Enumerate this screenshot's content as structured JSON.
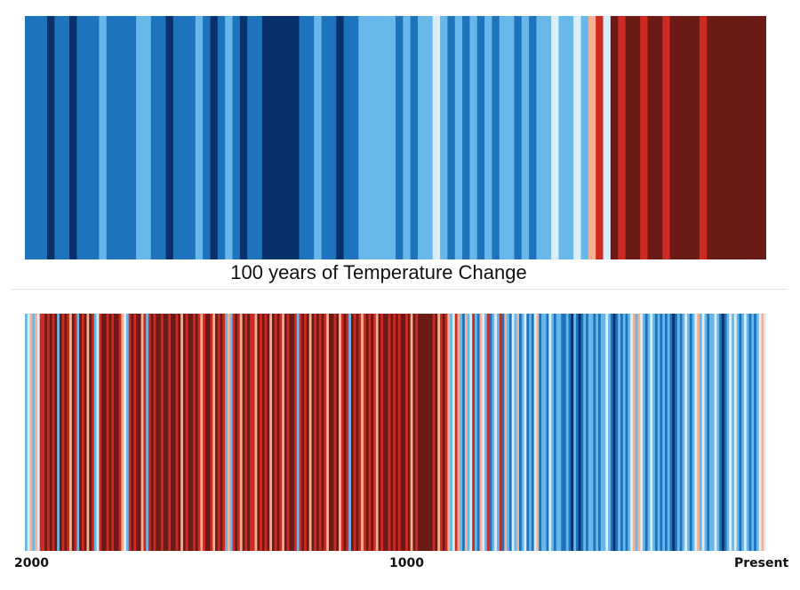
{
  "palette": [
    "#08306b",
    "#0b4f9c",
    "#1e73bd",
    "#3a95d8",
    "#68b7eb",
    "#a9d8f5",
    "#d9eef9",
    "#fbe9d8",
    "#f6b092",
    "#ea6b4b",
    "#cf2a22",
    "#a0151a",
    "#6b1a16"
  ],
  "chart_data": [
    {
      "type": "heatmap",
      "variant": "warming-stripes",
      "title": "100 years of Temperature Change",
      "xlabel": "",
      "ylabel": "",
      "legend": "none",
      "grid": false,
      "scale": {
        "min": -3,
        "max": 3,
        "colors": [
          "#08306b",
          "#0b4f9c",
          "#1e73bd",
          "#3a95d8",
          "#68b7eb",
          "#a9d8f5",
          "#d9eef9",
          "#fbe9d8",
          "#f6b092",
          "#ea6b4b",
          "#cf2a22",
          "#a0151a",
          "#6b1a16"
        ]
      },
      "values": [
        -2,
        -2,
        -2,
        -3,
        -2,
        -2,
        -3,
        -2,
        -2,
        -2,
        -1,
        -2,
        -2,
        -2,
        -2,
        -1,
        -1,
        -2,
        -2,
        -3,
        -2,
        -2,
        -2,
        -1,
        -2,
        -3,
        -2,
        -1,
        -2,
        -3,
        -2,
        -2,
        -3,
        -3,
        -3,
        -3,
        -3,
        -2,
        -2,
        -1,
        -2,
        -2,
        -3,
        -2,
        -2,
        -1,
        -1,
        -1,
        -1,
        -1,
        -2,
        -1,
        -2,
        -1,
        -1,
        0,
        -1,
        -2,
        -1,
        -2,
        -1,
        -2,
        -1,
        -2,
        -1,
        -1,
        -2,
        -1,
        -2,
        -1,
        -1,
        0,
        -1,
        -1,
        0,
        -1,
        1,
        2,
        0,
        3,
        2,
        3,
        3,
        2,
        3,
        3,
        2,
        3,
        3,
        3,
        3,
        2,
        3,
        3,
        4,
        3,
        4,
        4,
        5,
        6
      ]
    },
    {
      "type": "heatmap",
      "variant": "warming-stripes",
      "title": "",
      "xlabel": "",
      "ylabel": "",
      "legend": "none",
      "grid": false,
      "x_ticks": [
        "2000",
        "1000",
        "Present"
      ],
      "scale": {
        "min": -3,
        "max": 3,
        "colors": [
          "#08306b",
          "#0b4f9c",
          "#1e73bd",
          "#3a95d8",
          "#68b7eb",
          "#a9d8f5",
          "#d9eef9",
          "#fbe9d8",
          "#f6b092",
          "#ea6b4b",
          "#cf2a22",
          "#a0151a",
          "#6b1a16"
        ]
      },
      "values": [
        -1,
        0,
        1,
        -1,
        1,
        0,
        2,
        2,
        3,
        2,
        3,
        2,
        3,
        -1,
        3,
        2,
        3,
        2,
        1,
        3,
        2,
        -1,
        3,
        2,
        3,
        1,
        3,
        2,
        -1,
        0,
        2,
        3,
        3,
        2,
        3,
        2,
        3,
        3,
        2,
        1,
        0,
        -1,
        2,
        3,
        2,
        3,
        3,
        1,
        2,
        -1,
        2,
        3,
        2,
        3,
        3,
        2,
        3,
        3,
        2,
        3,
        3,
        2,
        3,
        1,
        3,
        2,
        3,
        3,
        2,
        3,
        2,
        1,
        2,
        3,
        3,
        2,
        1,
        3,
        2,
        3,
        2,
        -1,
        1,
        -1,
        2,
        3,
        2,
        1,
        3,
        2,
        3,
        2,
        2,
        1,
        3,
        2,
        3,
        2,
        3,
        1,
        3,
        2,
        3,
        2,
        1,
        3,
        2,
        3,
        3,
        2,
        -1,
        2,
        3,
        2,
        3,
        1,
        3,
        2,
        3,
        2,
        3,
        2,
        1,
        3,
        3,
        2,
        3,
        1,
        2,
        3,
        2,
        -1,
        3,
        2,
        3,
        2,
        1,
        2,
        3,
        2,
        3,
        2,
        1,
        3,
        2,
        3,
        3,
        2,
        3,
        2,
        3,
        2,
        3,
        3,
        2,
        3,
        1,
        3,
        2,
        4,
        4,
        3,
        3,
        4,
        3,
        2,
        3,
        1,
        2,
        3,
        2,
        1,
        -1,
        0,
        2,
        1,
        -1,
        -2,
        1,
        -1,
        0,
        2,
        -1,
        -2,
        1,
        0,
        -1,
        2,
        -2,
        -1,
        0,
        -1,
        2,
        -2,
        1,
        -1,
        -2,
        0,
        -1,
        1,
        -2,
        -1,
        0,
        -2,
        -1,
        -2,
        0,
        1,
        -2,
        -1,
        -1,
        -2,
        0,
        -1,
        -2,
        -1,
        -1,
        -2,
        -2,
        -1,
        -2,
        -3,
        -1,
        -2,
        -3,
        -2,
        -1,
        -2,
        -1,
        -1,
        -2,
        -1,
        -2,
        -1,
        -1,
        0,
        -1,
        -2,
        -3,
        -2,
        -1,
        -2,
        -1,
        -2,
        -1,
        0,
        1,
        -1,
        1,
        0,
        -1,
        -2,
        -1,
        0,
        -1,
        -2,
        -1,
        -2,
        -1,
        -2,
        -1,
        -2,
        -3,
        -2,
        -1,
        -2,
        -1,
        0,
        -1,
        -2,
        -1,
        0,
        1,
        -1,
        0,
        -1,
        -2,
        -1,
        -1,
        0,
        -1,
        -2,
        -3,
        -2,
        -1,
        0,
        -1,
        0,
        -1,
        -2,
        -1,
        0,
        -1,
        -2,
        -1,
        -2,
        -1,
        0,
        1,
        0
      ]
    }
  ]
}
